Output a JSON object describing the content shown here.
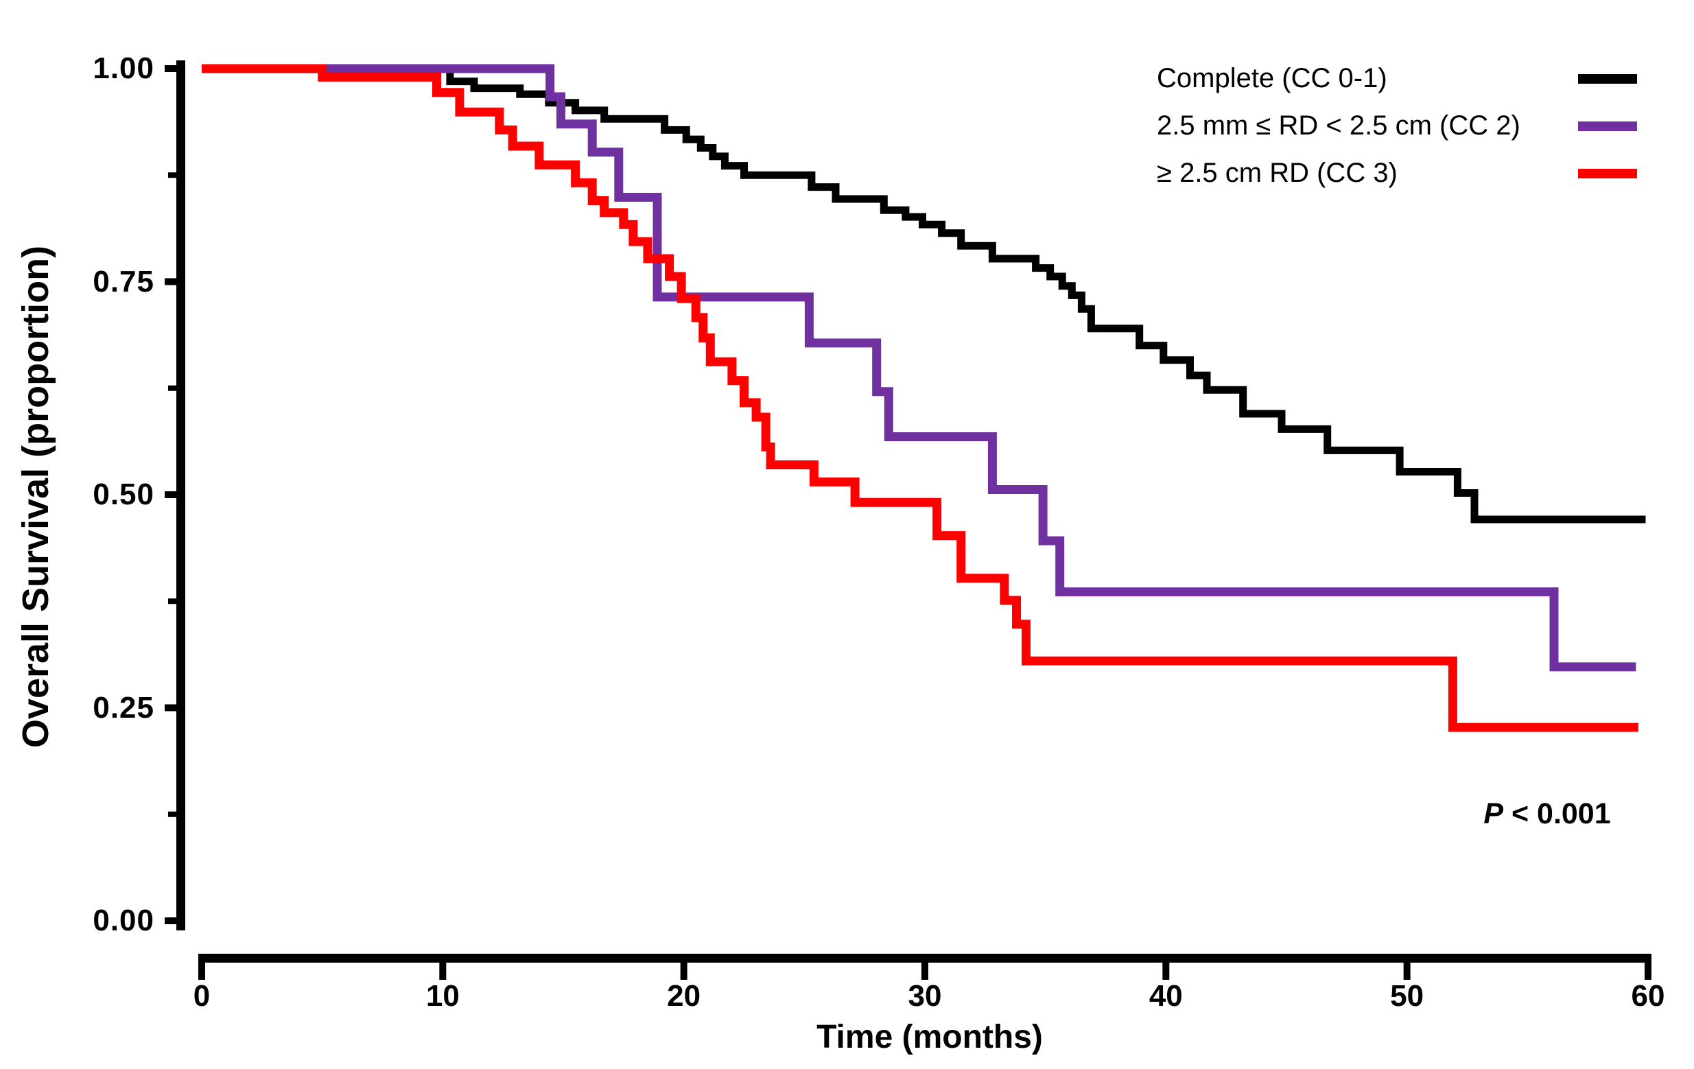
{
  "figure": {
    "background": "#ffffff",
    "p_annotation": {
      "symbol": "P",
      "rest": " < 0.001"
    }
  },
  "legend": {
    "items": [
      {
        "label": "Complete (CC 0-1)",
        "color": "#000000"
      },
      {
        "label": "2.5 mm ≤ RD < 2.5 cm (CC 2)",
        "color": "#7030A0"
      },
      {
        "label": "≥ 2.5 cm RD (CC 3)",
        "color": "#FF0000"
      }
    ]
  },
  "chart_data": {
    "type": "line",
    "subtype": "kaplan-meier-step",
    "title": "",
    "xlabel": "Time (months)",
    "ylabel": "Overall Survival (proportion)",
    "xlim": [
      0,
      60
    ],
    "ylim": [
      0,
      1
    ],
    "grid": false,
    "legend_position": "top-right",
    "annotation": "P < 0.001",
    "x_ticks": [
      {
        "value": 0,
        "label": "0"
      },
      {
        "value": 10,
        "label": "10"
      },
      {
        "value": 20,
        "label": "20"
      },
      {
        "value": 30,
        "label": "30"
      },
      {
        "value": 40,
        "label": "40"
      },
      {
        "value": 50,
        "label": "50"
      },
      {
        "value": 60,
        "label": "60"
      }
    ],
    "y_ticks": [
      {
        "value": 1.0,
        "label": "1.00"
      },
      {
        "value": 0.75,
        "label": "0.75"
      },
      {
        "value": 0.5,
        "label": "0.50"
      },
      {
        "value": 0.25,
        "label": "0.25"
      },
      {
        "value": 0.0,
        "label": "0.00"
      }
    ],
    "y_minor_ticks": [
      0.875,
      0.625,
      0.375,
      0.125
    ],
    "series": [
      {
        "name": "Complete (CC 0-1)",
        "color": "#000000",
        "stroke_width": 11,
        "end_month": 59.9,
        "points": [
          [
            0,
            1.0
          ],
          [
            10.3,
            0.985
          ],
          [
            11.3,
            0.977
          ],
          [
            13.2,
            0.97
          ],
          [
            14.4,
            0.96
          ],
          [
            15.5,
            0.951
          ],
          [
            16.7,
            0.941
          ],
          [
            19.2,
            0.928
          ],
          [
            20.1,
            0.917
          ],
          [
            20.7,
            0.907
          ],
          [
            21.2,
            0.897
          ],
          [
            21.7,
            0.886
          ],
          [
            22.5,
            0.875
          ],
          [
            25.3,
            0.861
          ],
          [
            26.3,
            0.847
          ],
          [
            28.3,
            0.834
          ],
          [
            29.2,
            0.826
          ],
          [
            29.9,
            0.817
          ],
          [
            30.7,
            0.807
          ],
          [
            31.5,
            0.792
          ],
          [
            32.8,
            0.777
          ],
          [
            34.6,
            0.766
          ],
          [
            35.2,
            0.756
          ],
          [
            35.7,
            0.745
          ],
          [
            36.1,
            0.734
          ],
          [
            36.5,
            0.718
          ],
          [
            36.9,
            0.695
          ],
          [
            38.9,
            0.675
          ],
          [
            39.9,
            0.658
          ],
          [
            41.0,
            0.64
          ],
          [
            41.7,
            0.623
          ],
          [
            43.2,
            0.595
          ],
          [
            44.8,
            0.577
          ],
          [
            46.7,
            0.552
          ],
          [
            49.7,
            0.527
          ],
          [
            52.1,
            0.502
          ],
          [
            52.8,
            0.471
          ]
        ]
      },
      {
        "name": "2.5 mm ≤ RD < 2.5 cm (CC 2)",
        "color": "#7030A0",
        "stroke_width": 13,
        "end_month": 59.5,
        "points": [
          [
            0,
            1.0
          ],
          [
            14.45,
            0.967
          ],
          [
            14.9,
            0.935
          ],
          [
            16.2,
            0.902
          ],
          [
            17.3,
            0.849
          ],
          [
            18.9,
            0.732
          ],
          [
            25.2,
            0.678
          ],
          [
            28.0,
            0.621
          ],
          [
            28.5,
            0.568
          ],
          [
            32.8,
            0.506
          ],
          [
            34.9,
            0.446
          ],
          [
            35.6,
            0.386
          ],
          [
            56.1,
            0.298
          ]
        ]
      },
      {
        "name": "≥ 2.5 cm RD (CC 3)",
        "color": "#FF0000",
        "stroke_width": 13,
        "end_month": 59.6,
        "points": [
          [
            0,
            1.0
          ],
          [
            5.0,
            0.99
          ],
          [
            9.75,
            0.972
          ],
          [
            10.7,
            0.949
          ],
          [
            12.35,
            0.928
          ],
          [
            12.9,
            0.909
          ],
          [
            14.0,
            0.887
          ],
          [
            15.5,
            0.866
          ],
          [
            16.2,
            0.845
          ],
          [
            16.7,
            0.831
          ],
          [
            17.5,
            0.817
          ],
          [
            17.9,
            0.797
          ],
          [
            18.5,
            0.777
          ],
          [
            19.4,
            0.756
          ],
          [
            19.9,
            0.73
          ],
          [
            20.5,
            0.708
          ],
          [
            20.8,
            0.684
          ],
          [
            21.1,
            0.656
          ],
          [
            22.0,
            0.634
          ],
          [
            22.5,
            0.608
          ],
          [
            23.0,
            0.591
          ],
          [
            23.4,
            0.556
          ],
          [
            23.6,
            0.535
          ],
          [
            25.4,
            0.515
          ],
          [
            27.1,
            0.491
          ],
          [
            30.5,
            0.452
          ],
          [
            31.5,
            0.402
          ],
          [
            33.3,
            0.376
          ],
          [
            33.8,
            0.348
          ],
          [
            34.2,
            0.305
          ],
          [
            51.9,
            0.227
          ]
        ]
      }
    ]
  }
}
